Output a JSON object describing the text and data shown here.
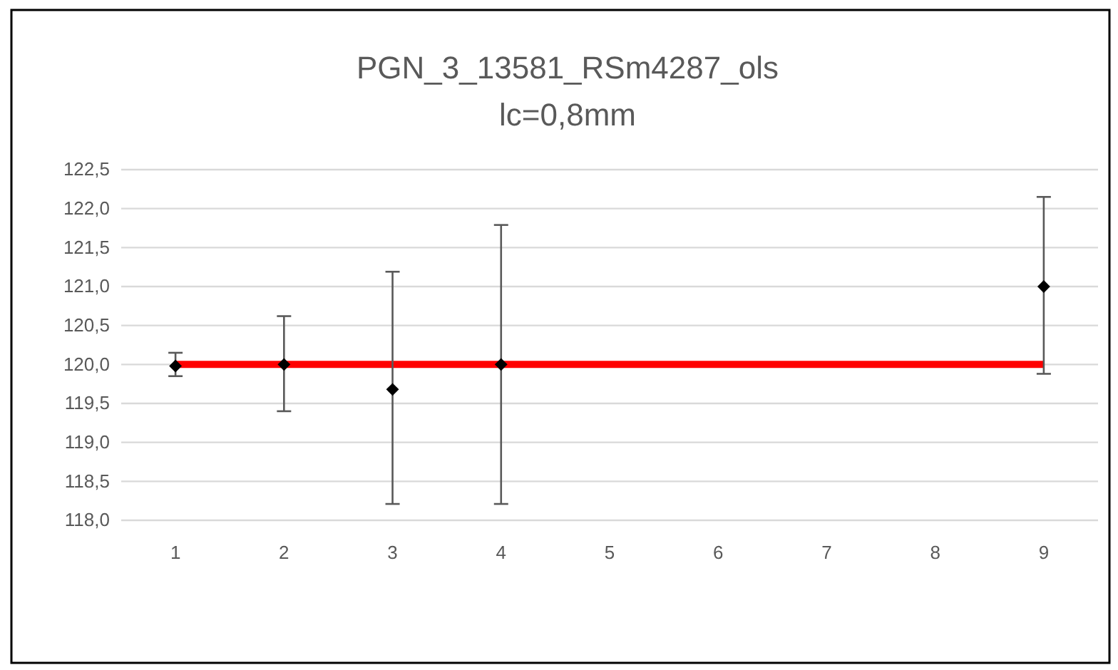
{
  "chart_data": {
    "type": "scatter",
    "title": "PGN_3_13581_RSm4287_ols",
    "subtitle": "lc=0,8mm",
    "categories": [
      "1",
      "2",
      "3",
      "4",
      "5",
      "6",
      "7",
      "8",
      "9"
    ],
    "series": [
      {
        "type": "line",
        "color": "#ff0000",
        "values": [
          120,
          120,
          120,
          120,
          120,
          120,
          120,
          120,
          120
        ]
      },
      {
        "color": "#000000",
        "marker": "diamond",
        "values": [
          119.98,
          120.0,
          119.68,
          120.0,
          null,
          null,
          null,
          null,
          121.0
        ],
        "errors": [
          [
            119.85,
            120.15
          ],
          [
            119.4,
            120.62
          ],
          [
            118.21,
            121.19
          ],
          [
            118.21,
            121.79
          ],
          null,
          null,
          null,
          null,
          [
            119.88,
            122.15
          ]
        ]
      }
    ],
    "ylim": [
      118,
      122.5
    ],
    "yticks": [
      {
        "value": 118,
        "label": "118,0"
      },
      {
        "value": 118.5,
        "label": "118,5"
      },
      {
        "value": 119,
        "label": "119,0"
      },
      {
        "value": 119.5,
        "label": "119,5"
      },
      {
        "value": 120,
        "label": "120,0"
      },
      {
        "value": 120.5,
        "label": "120,5"
      },
      {
        "value": 121,
        "label": "121,0"
      },
      {
        "value": 121.5,
        "label": "121,5"
      },
      {
        "value": 122,
        "label": "122,0"
      },
      {
        "value": 122.5,
        "label": "122,5"
      }
    ],
    "grid": "y"
  }
}
